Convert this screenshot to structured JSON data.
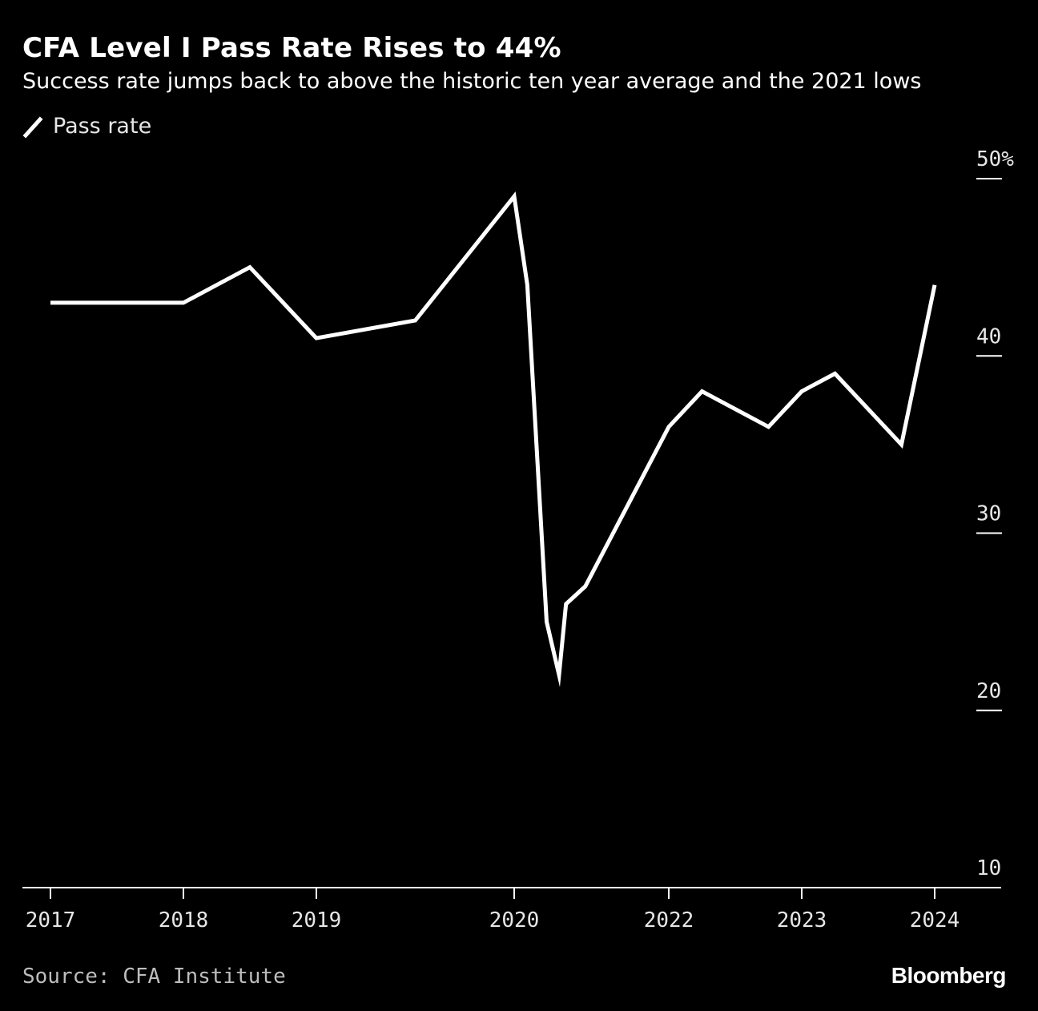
{
  "title": "CFA Level I Pass Rate Rises to 44%",
  "subtitle": "Success rate jumps back to above the historic ten year average and the 2021 lows",
  "legend_label": "Pass rate",
  "source": "Source: CFA Institute",
  "brand": "Bloomberg",
  "colors": {
    "background": "#000000",
    "line": "#ffffff",
    "axis": "#ffffff",
    "text": "#e6e6e6"
  },
  "chart_data": {
    "type": "line",
    "title": "CFA Level I Pass Rate Rises to 44%",
    "subtitle": "Success rate jumps back to above the historic ten year average and the 2021 lows",
    "xlabel": "",
    "ylabel": "",
    "xlim": [
      2017.0,
      2024.5
    ],
    "ylim": [
      10,
      50
    ],
    "y_ticks": [
      {
        "value": 50,
        "label": "50%"
      },
      {
        "value": 40,
        "label": "40"
      },
      {
        "value": 30,
        "label": "30"
      },
      {
        "value": 20,
        "label": "20"
      },
      {
        "value": 10,
        "label": "10"
      }
    ],
    "x_ticks": [
      {
        "value": 2017.0,
        "label": "2017"
      },
      {
        "value": 2018.0,
        "label": "2018"
      },
      {
        "value": 2019.0,
        "label": "2019"
      },
      {
        "value": 2020.0,
        "label": "2020"
      },
      {
        "value": 2022.0,
        "label": "2022"
      },
      {
        "value": 2023.0,
        "label": "2023"
      },
      {
        "value": 2024.0,
        "label": "2024"
      }
    ],
    "series": [
      {
        "name": "Pass rate",
        "points": [
          {
            "x": 2017.0,
            "y": 43
          },
          {
            "x": 2018.0,
            "y": 43
          },
          {
            "x": 2018.5,
            "y": 45
          },
          {
            "x": 2019.0,
            "y": 41
          },
          {
            "x": 2019.5,
            "y": 42
          },
          {
            "x": 2020.0,
            "y": 49
          },
          {
            "x": 2020.17,
            "y": 44
          },
          {
            "x": 2020.42,
            "y": 25
          },
          {
            "x": 2020.58,
            "y": 22
          },
          {
            "x": 2020.67,
            "y": 26
          },
          {
            "x": 2020.92,
            "y": 27
          },
          {
            "x": 2022.0,
            "y": 36
          },
          {
            "x": 2022.25,
            "y": 38
          },
          {
            "x": 2022.75,
            "y": 36
          },
          {
            "x": 2023.0,
            "y": 38
          },
          {
            "x": 2023.25,
            "y": 39
          },
          {
            "x": 2023.75,
            "y": 35
          },
          {
            "x": 2024.0,
            "y": 44
          }
        ]
      }
    ],
    "legend": "top-left",
    "grid": false
  }
}
